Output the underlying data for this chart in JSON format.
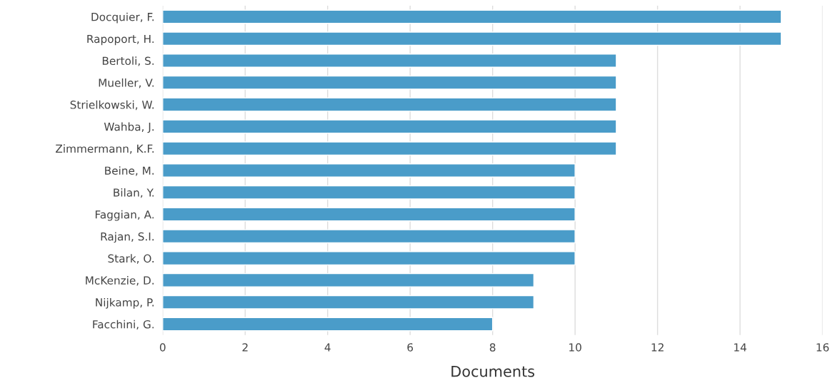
{
  "chart_data": {
    "type": "bar",
    "orientation": "horizontal",
    "xlabel": "Documents",
    "categories": [
      "Docquier, F.",
      "Rapoport, H.",
      "Bertoli, S.",
      "Mueller, V.",
      "Strielkowski, W.",
      "Wahba, J.",
      "Zimmermann, K.F.",
      "Beine, M.",
      "Bilan, Y.",
      "Faggian, A.",
      "Rajan, S.I.",
      "Stark, O.",
      "McKenzie, D.",
      "Nijkamp, P.",
      "Facchini, G."
    ],
    "values": [
      15,
      15,
      11,
      11,
      11,
      11,
      11,
      10,
      10,
      10,
      10,
      10,
      9,
      9,
      8
    ],
    "color": "#4a9cc9",
    "xlim": [
      0,
      16
    ],
    "xticks": [
      0,
      2,
      4,
      6,
      8,
      10,
      12,
      14,
      16
    ],
    "grid": "x"
  }
}
